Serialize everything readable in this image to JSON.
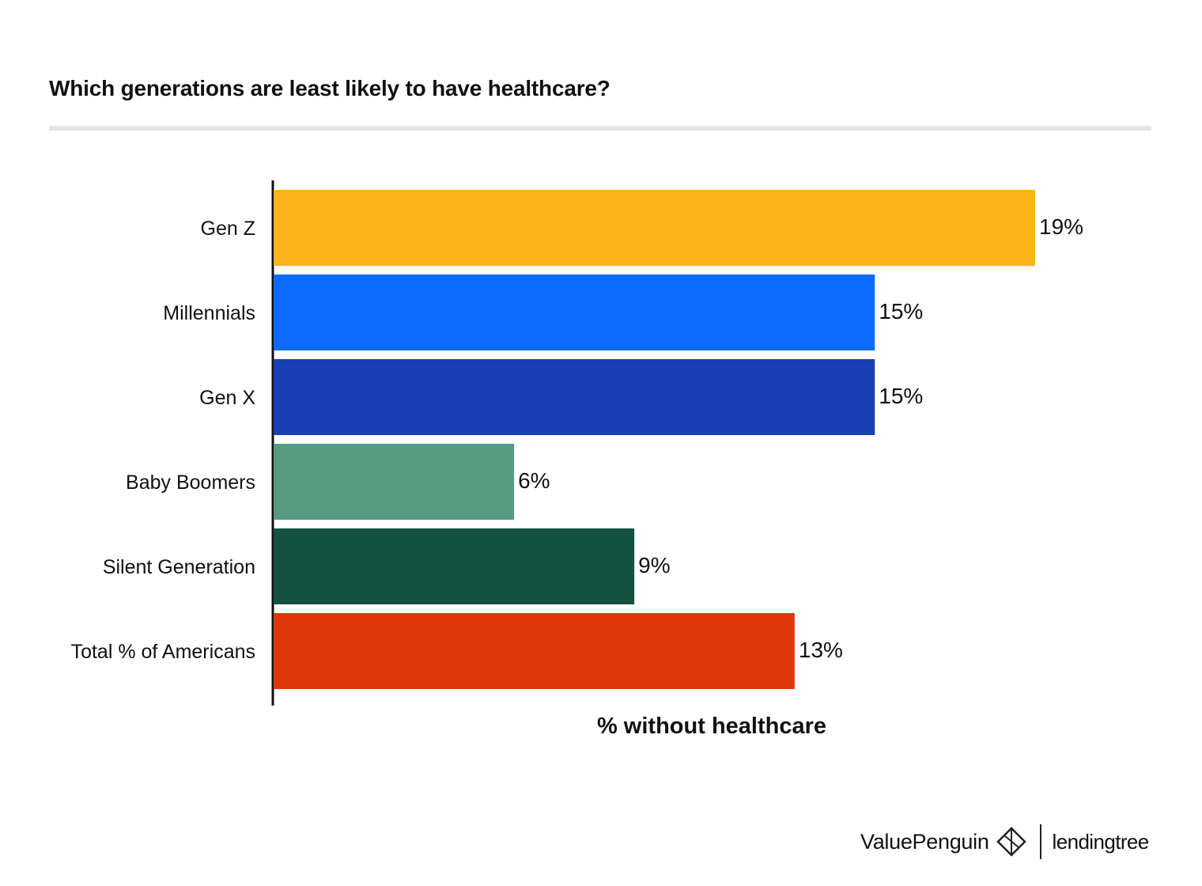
{
  "title": "Which generations are least likely to have healthcare?",
  "colors": {
    "gen_z": "#FDB31A",
    "millennials": "#0C6BFE",
    "gen_x": "#1A3EB3",
    "baby_boomers": "#569A81",
    "silent_generation": "#155241",
    "total": "#E0370A"
  },
  "chart_data": {
    "type": "bar",
    "orientation": "horizontal",
    "title": "Which generations are least likely to have healthcare?",
    "categories": [
      "Gen Z",
      "Millennials",
      "Gen X",
      "Baby Boomers",
      "Silent Generation",
      "Total % of Americans"
    ],
    "values": [
      19,
      15,
      15,
      6,
      9,
      13
    ],
    "value_labels": [
      "19%",
      "15%",
      "15%",
      "6%",
      "9%",
      "13%"
    ],
    "bar_colors": [
      "#FDB31A",
      "#0C6BFE",
      "#1A3EB3",
      "#569A81",
      "#155241",
      "#E0370A"
    ],
    "xlabel": "% without healthcare",
    "ylabel": "",
    "xlim": [
      0,
      19
    ],
    "grid": false,
    "legend": "none"
  },
  "footer": {
    "brand_primary": "ValuePenguin",
    "brand_secondary": "lendingtree",
    "logo_icon": "penguin-diamond-icon"
  }
}
